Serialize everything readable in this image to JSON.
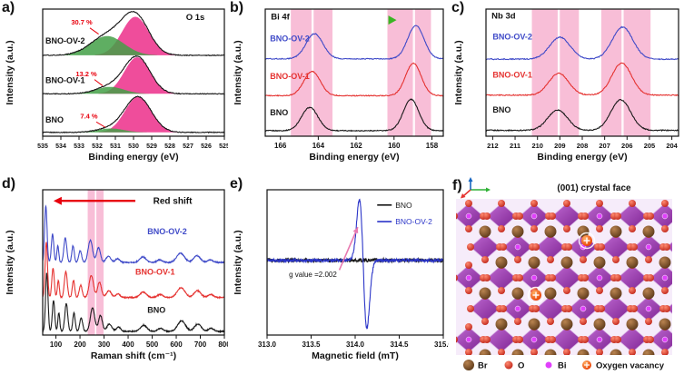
{
  "figure": {
    "panel_labels": {
      "a": "a)",
      "b": "b)",
      "c": "c)",
      "d": "d)",
      "e": "e)",
      "f": "f)"
    }
  },
  "chart_data": [
    {
      "id": "a",
      "type": "line",
      "title": "O 1s",
      "xlabel": "Binding energy (eV)",
      "ylabel": "Intensity (a.u.)",
      "xlim": [
        535,
        525
      ],
      "ylim": [
        -0.1,
        3.2
      ],
      "tick_decimals": 0,
      "x_ticks": [
        535,
        534,
        533,
        532,
        531,
        530,
        529,
        528,
        527,
        526,
        525
      ],
      "noise": 0.01,
      "samples": 300,
      "title_pos": {
        "x": 526.6,
        "y": 2.92,
        "anchor": "middle",
        "color": "#111111"
      },
      "series": [
        {
          "name": "BNO",
          "color": "#141414",
          "offset": 0,
          "peaks": [
            {
              "c": 529.75,
              "w": 0.72,
              "a": 0.92,
              "fill": "#ec2e8a"
            },
            {
              "c": 531.25,
              "w": 0.72,
              "a": 0.1,
              "fill": "#43a047"
            }
          ],
          "label": {
            "x": 534.85,
            "y": 0.25,
            "color": "#141414",
            "anchor": "start"
          }
        },
        {
          "name": "BNO-OV-1",
          "color": "#141414",
          "offset": 1.0,
          "peaks": [
            {
              "c": 529.8,
              "w": 0.71,
              "a": 0.95,
              "fill": "#ec2e8a"
            },
            {
              "c": 531.3,
              "w": 0.78,
              "a": 0.18,
              "fill": "#43a047"
            }
          ],
          "label": {
            "x": 534.85,
            "y": 1.28,
            "color": "#141414",
            "anchor": "start"
          }
        },
        {
          "name": "BNO-OV-2",
          "color": "#141414",
          "offset": 2.0,
          "peaks": [
            {
              "c": 529.9,
              "w": 0.74,
              "a": 1.0,
              "fill": "#ec2e8a"
            },
            {
              "c": 531.45,
              "w": 0.92,
              "a": 0.5,
              "fill": "#43a047"
            }
          ],
          "label": {
            "x": 534.85,
            "y": 2.3,
            "color": "#141414",
            "anchor": "start"
          }
        }
      ],
      "annotations": [
        {
          "text": "7.4 %",
          "x": 532.45,
          "y": 0.36,
          "color": "#e8000d",
          "size": 7.5,
          "bold": true,
          "anchor": "middle",
          "leader": [
            532.05,
            0.27,
            531.55,
            0.13
          ]
        },
        {
          "text": "13.2 %",
          "x": 532.6,
          "y": 1.46,
          "color": "#e8000d",
          "size": 7.5,
          "bold": true,
          "anchor": "middle",
          "leader": [
            532.15,
            1.37,
            531.7,
            1.21
          ]
        },
        {
          "text": "30.7 %",
          "x": 532.85,
          "y": 2.8,
          "color": "#e8000d",
          "size": 7.5,
          "bold": true,
          "anchor": "middle",
          "leader": [
            532.4,
            2.71,
            531.92,
            2.55
          ]
        }
      ]
    },
    {
      "id": "b",
      "type": "line",
      "title": "Bi 4f",
      "xlabel": "Binding energy (eV)",
      "ylabel": "Intensity (a.u.)",
      "xlim": [
        166.8,
        157.4
      ],
      "ylim": [
        -0.15,
        3.3
      ],
      "tick_decimals": 0,
      "x_ticks": [
        166,
        164,
        162,
        160,
        158
      ],
      "noise": 0.012,
      "samples": 300,
      "title_pos": {
        "x": 166.5,
        "y": 3.02,
        "anchor": "start",
        "color": "#111111"
      },
      "band_color": "#f6aecd",
      "bands": [
        {
          "x1": 165.45,
          "x2": 163.25,
          "line": 164.3
        },
        {
          "x1": 160.35,
          "x2": 158.05,
          "line": 158.95
        }
      ],
      "series": [
        {
          "name": "BNO",
          "color": "#1a1a1a",
          "offset": 0,
          "peaks": [
            {
              "c": 164.45,
              "w": 0.43,
              "a": 0.63
            },
            {
              "c": 159.1,
              "w": 0.41,
              "a": 0.85
            }
          ],
          "label": {
            "x": 166.55,
            "y": 0.42,
            "color": "#1a1a1a",
            "anchor": "start"
          }
        },
        {
          "name": "BNO-OV-1",
          "color": "#e53230",
          "offset": 0.95,
          "peaks": [
            {
              "c": 164.33,
              "w": 0.43,
              "a": 0.66
            },
            {
              "c": 158.98,
              "w": 0.41,
              "a": 0.88
            }
          ],
          "label": {
            "x": 166.55,
            "y": 1.4,
            "color": "#e53230",
            "anchor": "start"
          }
        },
        {
          "name": "BNO-OV-2",
          "color": "#3f4ac8",
          "offset": 1.95,
          "peaks": [
            {
              "c": 164.2,
              "w": 0.45,
              "a": 0.68
            },
            {
              "c": 158.85,
              "w": 0.43,
              "a": 0.9
            }
          ],
          "label": {
            "x": 166.55,
            "y": 2.42,
            "color": "#3f4ac8",
            "anchor": "start"
          }
        }
      ],
      "grad_arrow": {
        "x1": 163.6,
        "x2": 160.3,
        "y": 3.0,
        "from": "#e8000d",
        "to": "#3bb424"
      }
    },
    {
      "id": "c",
      "type": "line",
      "title": "Nb 3d",
      "xlabel": "Binding energy (eV)",
      "ylabel": "Intensity (a.u.)",
      "xlim": [
        212.3,
        203.7
      ],
      "ylim": [
        -0.15,
        3.1
      ],
      "tick_decimals": 0,
      "x_ticks": [
        212,
        211,
        210,
        209,
        208,
        207,
        206,
        205,
        204
      ],
      "noise": 0.013,
      "samples": 300,
      "title_pos": {
        "x": 212.05,
        "y": 2.86,
        "anchor": "start",
        "color": "#111111"
      },
      "band_color": "#f6aecd",
      "bands": [
        {
          "x1": 210.25,
          "x2": 208.15,
          "line": 209.05
        },
        {
          "x1": 207.15,
          "x2": 204.95,
          "line": 206.2
        }
      ],
      "series": [
        {
          "name": "BNO",
          "color": "#1a1a1a",
          "offset": 0,
          "peaks": [
            {
              "c": 209.1,
              "w": 0.44,
              "a": 0.52
            },
            {
              "c": 206.28,
              "w": 0.44,
              "a": 0.78
            }
          ],
          "label": {
            "x": 212.0,
            "y": 0.45,
            "color": "#1a1a1a",
            "anchor": "start"
          }
        },
        {
          "name": "BNO-OV-1",
          "color": "#e53230",
          "offset": 0.9,
          "peaks": [
            {
              "c": 209.05,
              "w": 0.44,
              "a": 0.56
            },
            {
              "c": 206.24,
              "w": 0.44,
              "a": 0.82
            }
          ],
          "label": {
            "x": 212.0,
            "y": 1.35,
            "color": "#e53230",
            "anchor": "start"
          }
        },
        {
          "name": "BNO-OV-2",
          "color": "#3f4ac8",
          "offset": 1.82,
          "peaks": [
            {
              "c": 209.0,
              "w": 0.46,
              "a": 0.56
            },
            {
              "c": 206.2,
              "w": 0.46,
              "a": 0.82
            }
          ],
          "label": {
            "x": 212.0,
            "y": 2.32,
            "color": "#3f4ac8",
            "anchor": "start"
          }
        }
      ]
    },
    {
      "id": "d",
      "type": "line",
      "title": "",
      "xlabel": "Raman shift (cm⁻¹)",
      "ylabel": "Intensity (a.u.)",
      "xlim": [
        45,
        800
      ],
      "ylim": [
        -0.06,
        2.3
      ],
      "tick_decimals": 0,
      "x_ticks": [
        100,
        200,
        300,
        400,
        500,
        600,
        700,
        800
      ],
      "noise": 0.008,
      "samples": 700,
      "band_color": "#f6aecd",
      "bands": [
        {
          "x1": 232,
          "x2": 262
        },
        {
          "x1": 268,
          "x2": 298
        }
      ],
      "series": [
        {
          "name": "BNO",
          "color": "#1a1a1a",
          "offset": 0,
          "peaks": [
            [
              62,
              5,
              0.95
            ],
            [
              90,
              5,
              0.5
            ],
            [
              112,
              4,
              0.3
            ],
            [
              143,
              6,
              0.45
            ],
            [
              175,
              5,
              0.3
            ],
            [
              205,
              6,
              0.22
            ],
            [
              252,
              9,
              0.38
            ],
            [
              285,
              8,
              0.26
            ],
            [
              322,
              10,
              0.12
            ],
            [
              360,
              9,
              0.07
            ],
            [
              465,
              13,
              0.1
            ],
            [
              535,
              11,
              0.05
            ],
            [
              622,
              16,
              0.17
            ],
            [
              690,
              14,
              0.12
            ],
            [
              745,
              11,
              0.05
            ]
          ],
          "label": {
            "x": 480,
            "y": 0.3,
            "color": "#1a1a1a",
            "anchor": "start"
          }
        },
        {
          "name": "BNO-OV-1",
          "color": "#e53230",
          "offset": 0.55,
          "peaks": [
            [
              60,
              5,
              0.9
            ],
            [
              88,
              5,
              0.48
            ],
            [
              110,
              4,
              0.28
            ],
            [
              141,
              6,
              0.42
            ],
            [
              173,
              5,
              0.28
            ],
            [
              203,
              6,
              0.2
            ],
            [
              247,
              9,
              0.36
            ],
            [
              281,
              8,
              0.25
            ],
            [
              320,
              10,
              0.11
            ],
            [
              358,
              9,
              0.06
            ],
            [
              463,
              13,
              0.09
            ],
            [
              533,
              11,
              0.05
            ],
            [
              620,
              16,
              0.16
            ],
            [
              688,
              14,
              0.11
            ],
            [
              743,
              11,
              0.05
            ]
          ],
          "label": {
            "x": 430,
            "y": 0.92,
            "color": "#e53230",
            "anchor": "start"
          }
        },
        {
          "name": "BNO-OV-2",
          "color": "#3f4ac8",
          "offset": 1.12,
          "peaks": [
            [
              58,
              5,
              0.92
            ],
            [
              86,
              5,
              0.46
            ],
            [
              108,
              4,
              0.27
            ],
            [
              139,
              6,
              0.4
            ],
            [
              171,
              5,
              0.27
            ],
            [
              201,
              6,
              0.19
            ],
            [
              243,
              9,
              0.36
            ],
            [
              277,
              8,
              0.24
            ],
            [
              318,
              10,
              0.1
            ],
            [
              356,
              9,
              0.06
            ],
            [
              461,
              13,
              0.09
            ],
            [
              531,
              11,
              0.04
            ],
            [
              618,
              16,
              0.15
            ],
            [
              686,
              14,
              0.11
            ],
            [
              741,
              11,
              0.04
            ]
          ],
          "label": {
            "x": 480,
            "y": 1.58,
            "color": "#3f4ac8",
            "anchor": "start"
          }
        }
      ],
      "red_arrow": {
        "x1": 430,
        "x2": 90,
        "y": 2.12,
        "color": "#e8000d"
      },
      "annotations": [
        {
          "text": "Red shift",
          "x": 585,
          "y": 2.07,
          "color": "#111111",
          "size": 10,
          "bold": true,
          "anchor": "middle"
        }
      ]
    },
    {
      "id": "e",
      "type": "line",
      "title": "",
      "xlabel": "Magnetic field (mT)",
      "ylabel": "Intensity (a.u.)",
      "xlim": [
        313.0,
        315.0
      ],
      "ylim": [
        0,
        1.05
      ],
      "tick_decimals": 1,
      "x_ticks": [
        313.0,
        313.5,
        314.0,
        314.5,
        315.0
      ],
      "samples": 600,
      "series": [
        {
          "name": "BNO",
          "color": "#1a1a1a",
          "epr": {
            "baseline": 0.54,
            "center": 314.09,
            "width": 0.04,
            "amp": 0,
            "noise": 0.013
          }
        },
        {
          "name": "BNO-OV-2",
          "color": "#2b35c8",
          "epr": {
            "baseline": 0.54,
            "center": 314.09,
            "width": 0.042,
            "amp": 0.44,
            "noise": 0.011
          }
        }
      ],
      "legend": {
        "x": 314.25,
        "y": 0.92,
        "dy": 0.12,
        "items": [
          {
            "name": "BNO",
            "color": "#1a1a1a"
          },
          {
            "name": "BNO-OV-2",
            "color": "#2b35c8"
          }
        ]
      },
      "annotations": [
        {
          "text": "g value =2.002",
          "x": 313.52,
          "y": 0.42,
          "color": "#111111",
          "size": 8,
          "bold": false,
          "anchor": "middle"
        }
      ],
      "ann_arrow": {
        "x1": 313.82,
        "y1": 0.47,
        "x2": 314.03,
        "y2": 0.78,
        "color": "#e87ab0"
      }
    }
  ],
  "structure": {
    "title": "(001) crystal face",
    "axis_colors": {
      "x": "#2eb135",
      "y": "#1565c0",
      "z": "#e53230"
    },
    "colors": {
      "octahedron_hi": "#c06ad2",
      "octahedron_lo": "#7c2291",
      "oxygen_hi": "#ff8a70",
      "oxygen_lo": "#c1271b",
      "bromine_hi": "#b98350",
      "bromine_lo": "#5d3a1a",
      "bismuth": "#e040fb",
      "vacancy_hi": "#ffb066",
      "vacancy_lo": "#e83c00"
    },
    "vacancies": [
      [
        152,
        72
      ],
      [
        96,
        132
      ]
    ],
    "legend": [
      {
        "name": "Br",
        "type": "br"
      },
      {
        "name": "O",
        "type": "o"
      },
      {
        "name": "Bi",
        "type": "bi"
      },
      {
        "name": "Oxygen vacancy",
        "type": "vac"
      }
    ]
  }
}
